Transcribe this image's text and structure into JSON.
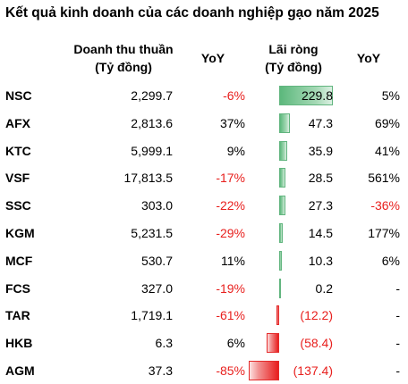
{
  "title": "Kết quả kinh doanh của các doanh nghiệp gạo năm 2025",
  "headers": {
    "revenue_line1": "Doanh thu thuần",
    "revenue_line2": "(Tỷ đồng)",
    "yoy": "YoY",
    "net_profit_line1": "Lãi ròng",
    "net_profit_line2": "(Tỷ đồng)",
    "yoy2": "YoY"
  },
  "colors": {
    "positive_bar": "#5cb87c",
    "negative_bar": "#e81e1e",
    "negative_text": "#e8201e"
  },
  "rows": [
    {
      "ticker": "NSC",
      "revenue": "2,299.7",
      "revenue_yoy": "-6%",
      "net_profit": "229.8",
      "net_profit_value": 229.8,
      "profit_yoy": "5%"
    },
    {
      "ticker": "AFX",
      "revenue": "2,813.6",
      "revenue_yoy": "37%",
      "net_profit": "47.3",
      "net_profit_value": 47.3,
      "profit_yoy": "69%"
    },
    {
      "ticker": "KTC",
      "revenue": "5,999.1",
      "revenue_yoy": "9%",
      "net_profit": "35.9",
      "net_profit_value": 35.9,
      "profit_yoy": "41%"
    },
    {
      "ticker": "VSF",
      "revenue": "17,813.5",
      "revenue_yoy": "-17%",
      "net_profit": "28.5",
      "net_profit_value": 28.5,
      "profit_yoy": "561%"
    },
    {
      "ticker": "SSC",
      "revenue": "303.0",
      "revenue_yoy": "-22%",
      "net_profit": "27.3",
      "net_profit_value": 27.3,
      "profit_yoy": "-36%"
    },
    {
      "ticker": "KGM",
      "revenue": "5,231.5",
      "revenue_yoy": "-29%",
      "net_profit": "14.5",
      "net_profit_value": 14.5,
      "profit_yoy": "177%"
    },
    {
      "ticker": "MCF",
      "revenue": "530.7",
      "revenue_yoy": "11%",
      "net_profit": "10.3",
      "net_profit_value": 10.3,
      "profit_yoy": "6%"
    },
    {
      "ticker": "FCS",
      "revenue": "327.0",
      "revenue_yoy": "-19%",
      "net_profit": "0.2",
      "net_profit_value": 0.2,
      "profit_yoy": "-"
    },
    {
      "ticker": "TAR",
      "revenue": "1,719.1",
      "revenue_yoy": "-61%",
      "net_profit": "(12.2)",
      "net_profit_value": -12.2,
      "profit_yoy": "-"
    },
    {
      "ticker": "HKB",
      "revenue": "6.3",
      "revenue_yoy": "6%",
      "net_profit": "(58.4)",
      "net_profit_value": -58.4,
      "profit_yoy": "-"
    },
    {
      "ticker": "AGM",
      "revenue": "37.3",
      "revenue_yoy": "-85%",
      "net_profit": "(137.4)",
      "net_profit_value": -137.4,
      "profit_yoy": "-"
    }
  ]
}
